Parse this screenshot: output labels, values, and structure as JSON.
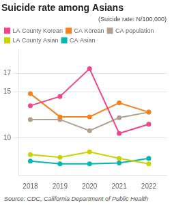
{
  "chart_data": {
    "type": "line",
    "title": "Suicide rate among Asians",
    "subtitle": "(Suicide rate: N/100,000)",
    "source": "Source: CDC, California Department of Public Health",
    "x": [
      2018,
      2019,
      2020,
      2021,
      2022
    ],
    "series": [
      {
        "name": "LA County Korean",
        "color": "#f0458a",
        "marker": "o",
        "values": [
          13.5,
          14.5,
          17.5,
          10.5,
          11.5
        ]
      },
      {
        "name": "CA Korean",
        "color": "#f58220",
        "marker": "o",
        "values": [
          14.8,
          12.3,
          12.3,
          13.8,
          12.8
        ]
      },
      {
        "name": "CA population",
        "color": "#b0a090",
        "marker": "o",
        "values": [
          12.0,
          12.0,
          10.8,
          12.2,
          12.8
        ]
      },
      {
        "name": "LA County Asian",
        "color": "#c8d400",
        "marker": "o",
        "values": [
          8.2,
          7.9,
          8.5,
          7.8,
          7.2
        ]
      },
      {
        "name": "CA Asian",
        "color": "#00b8b0",
        "marker": "o",
        "values": [
          7.5,
          7.2,
          7.2,
          7.3,
          7.8
        ]
      }
    ],
    "xlim": [
      2017.6,
      2022.6
    ],
    "xticks": [
      2018,
      2019,
      2020,
      2021,
      2022
    ],
    "ylim": [
      6.0,
      19.5
    ],
    "yticks": [
      10,
      15,
      17
    ],
    "grid": "y",
    "legend": "top"
  }
}
